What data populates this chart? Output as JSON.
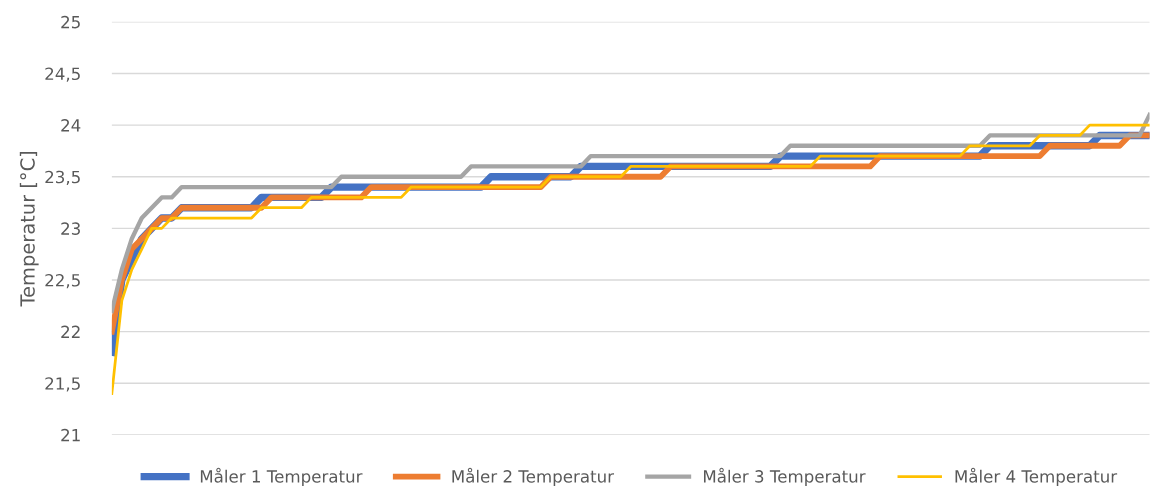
{
  "chart_data": {
    "type": "line",
    "ylabel": "Temperatur [°C]",
    "categories": [
      null,
      null,
      null,
      null,
      null,
      null,
      null,
      null,
      null,
      null,
      null,
      null,
      null,
      null,
      null,
      null,
      null,
      null,
      null,
      null,
      null,
      null,
      null,
      null,
      null,
      null,
      null,
      null,
      null,
      null,
      null,
      null,
      null,
      null,
      null,
      null,
      null,
      null,
      null,
      null,
      null,
      null,
      null,
      null,
      null,
      null,
      null,
      null,
      null,
      null,
      null,
      null,
      null,
      null,
      null,
      null,
      null,
      null,
      null,
      null,
      null,
      null,
      null,
      null,
      null,
      null,
      null,
      null,
      null,
      null,
      null,
      null,
      null,
      null,
      null,
      null,
      null,
      null,
      null,
      null,
      null,
      null,
      null,
      null,
      null,
      null,
      null,
      null,
      null,
      null,
      null,
      null,
      null,
      null,
      null,
      null,
      null,
      null,
      null,
      null,
      null,
      null,
      null,
      null,
      null
    ],
    "series": [
      {
        "name": "Måler 1 Temperatur",
        "color": "#4472c4",
        "values": [
          21.8,
          22.5,
          22.7,
          22.9,
          23.0,
          23.1,
          23.1,
          23.2,
          23.2,
          23.2,
          23.2,
          23.2,
          23.2,
          23.2,
          23.2,
          23.3,
          23.3,
          23.3,
          23.3,
          23.3,
          23.3,
          23.3,
          23.4,
          23.4,
          23.4,
          23.4,
          23.4,
          23.4,
          23.4,
          23.4,
          23.4,
          23.4,
          23.4,
          23.4,
          23.4,
          23.4,
          23.4,
          23.4,
          23.5,
          23.5,
          23.5,
          23.5,
          23.5,
          23.5,
          23.5,
          23.5,
          23.5,
          23.6,
          23.6,
          23.6,
          23.6,
          23.6,
          23.6,
          23.6,
          23.6,
          23.6,
          23.6,
          23.6,
          23.6,
          23.6,
          23.6,
          23.6,
          23.6,
          23.6,
          23.6,
          23.6,
          23.6,
          23.7,
          23.7,
          23.7,
          23.7,
          23.7,
          23.7,
          23.7,
          23.7,
          23.7,
          23.7,
          23.7,
          23.7,
          23.7,
          23.7,
          23.7,
          23.7,
          23.7,
          23.7,
          23.7,
          23.7,
          23.7,
          23.8,
          23.8,
          23.8,
          23.8,
          23.8,
          23.8,
          23.8,
          23.8,
          23.8,
          23.8,
          23.8,
          23.9,
          23.9,
          23.9,
          23.9,
          23.9,
          23.9
        ]
      },
      {
        "name": "Måler 2 Temperatur",
        "color": "#ed7d31",
        "values": [
          22.0,
          22.5,
          22.8,
          22.9,
          23.0,
          23.1,
          23.1,
          23.2,
          23.2,
          23.2,
          23.2,
          23.2,
          23.2,
          23.2,
          23.2,
          23.2,
          23.3,
          23.3,
          23.3,
          23.3,
          23.3,
          23.3,
          23.3,
          23.3,
          23.3,
          23.3,
          23.4,
          23.4,
          23.4,
          23.4,
          23.4,
          23.4,
          23.4,
          23.4,
          23.4,
          23.4,
          23.4,
          23.4,
          23.4,
          23.4,
          23.4,
          23.4,
          23.4,
          23.4,
          23.5,
          23.5,
          23.5,
          23.5,
          23.5,
          23.5,
          23.5,
          23.5,
          23.5,
          23.5,
          23.5,
          23.5,
          23.6,
          23.6,
          23.6,
          23.6,
          23.6,
          23.6,
          23.6,
          23.6,
          23.6,
          23.6,
          23.6,
          23.6,
          23.6,
          23.6,
          23.6,
          23.6,
          23.6,
          23.6,
          23.6,
          23.6,
          23.6,
          23.7,
          23.7,
          23.7,
          23.7,
          23.7,
          23.7,
          23.7,
          23.7,
          23.7,
          23.7,
          23.7,
          23.7,
          23.7,
          23.7,
          23.7,
          23.7,
          23.7,
          23.8,
          23.8,
          23.8,
          23.8,
          23.8,
          23.8,
          23.8,
          23.8,
          23.9,
          23.9,
          23.9
        ]
      },
      {
        "name": "Måler 3 Temperatur",
        "color": "#a5a5a5",
        "values": [
          22.2,
          22.6,
          22.9,
          23.1,
          23.2,
          23.3,
          23.3,
          23.4,
          23.4,
          23.4,
          23.4,
          23.4,
          23.4,
          23.4,
          23.4,
          23.4,
          23.4,
          23.4,
          23.4,
          23.4,
          23.4,
          23.4,
          23.4,
          23.5,
          23.5,
          23.5,
          23.5,
          23.5,
          23.5,
          23.5,
          23.5,
          23.5,
          23.5,
          23.5,
          23.5,
          23.5,
          23.6,
          23.6,
          23.6,
          23.6,
          23.6,
          23.6,
          23.6,
          23.6,
          23.6,
          23.6,
          23.6,
          23.6,
          23.7,
          23.7,
          23.7,
          23.7,
          23.7,
          23.7,
          23.7,
          23.7,
          23.7,
          23.7,
          23.7,
          23.7,
          23.7,
          23.7,
          23.7,
          23.7,
          23.7,
          23.7,
          23.7,
          23.7,
          23.8,
          23.8,
          23.8,
          23.8,
          23.8,
          23.8,
          23.8,
          23.8,
          23.8,
          23.8,
          23.8,
          23.8,
          23.8,
          23.8,
          23.8,
          23.8,
          23.8,
          23.8,
          23.8,
          23.8,
          23.9,
          23.9,
          23.9,
          23.9,
          23.9,
          23.9,
          23.9,
          23.9,
          23.9,
          23.9,
          23.9,
          23.9,
          23.9,
          23.9,
          23.9,
          23.9,
          24.1
        ]
      },
      {
        "name": "Måler 4 Temperatur",
        "color": "#ffc000",
        "values": [
          21.4,
          22.3,
          22.6,
          22.8,
          23.0,
          23.0,
          23.1,
          23.1,
          23.1,
          23.1,
          23.1,
          23.1,
          23.1,
          23.1,
          23.1,
          23.2,
          23.2,
          23.2,
          23.2,
          23.2,
          23.3,
          23.3,
          23.3,
          23.3,
          23.3,
          23.3,
          23.3,
          23.3,
          23.3,
          23.3,
          23.4,
          23.4,
          23.4,
          23.4,
          23.4,
          23.4,
          23.4,
          23.4,
          23.4,
          23.4,
          23.4,
          23.4,
          23.4,
          23.4,
          23.5,
          23.5,
          23.5,
          23.5,
          23.5,
          23.5,
          23.5,
          23.5,
          23.6,
          23.6,
          23.6,
          23.6,
          23.6,
          23.6,
          23.6,
          23.6,
          23.6,
          23.6,
          23.6,
          23.6,
          23.6,
          23.6,
          23.6,
          23.6,
          23.6,
          23.6,
          23.6,
          23.7,
          23.7,
          23.7,
          23.7,
          23.7,
          23.7,
          23.7,
          23.7,
          23.7,
          23.7,
          23.7,
          23.7,
          23.7,
          23.7,
          23.7,
          23.8,
          23.8,
          23.8,
          23.8,
          23.8,
          23.8,
          23.8,
          23.9,
          23.9,
          23.9,
          23.9,
          23.9,
          24.0,
          24.0,
          24.0,
          24.0,
          24.0,
          24.0,
          24.0
        ]
      }
    ],
    "ylim": [
      21,
      25
    ],
    "yticks": [
      21,
      {
        "value": 21.5,
        "label": "21,5"
      },
      22,
      {
        "value": 22.5,
        "label": "22,5"
      },
      23,
      {
        "value": 23.5,
        "label": "23,5"
      },
      24,
      {
        "value": 24.5,
        "label": "24,5"
      },
      25
    ],
    "grid": "y",
    "legend": "bottom",
    "tick_labels": "y",
    "line_style": "solid",
    "marker": "none"
  }
}
